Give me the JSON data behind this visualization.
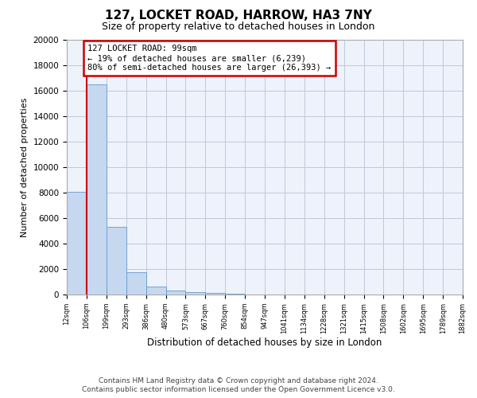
{
  "title": "127, LOCKET ROAD, HARROW, HA3 7NY",
  "subtitle": "Size of property relative to detached houses in London",
  "xlabel": "Distribution of detached houses by size in London",
  "ylabel": "Number of detached properties",
  "bar_values": [
    8050,
    16500,
    5300,
    1750,
    620,
    330,
    180,
    100,
    60,
    30,
    0,
    0,
    0,
    0,
    0,
    0,
    0,
    0,
    0,
    0
  ],
  "n_bins": 20,
  "bar_color": "#c5d8f0",
  "bar_edge_color": "#6699cc",
  "vline_bin": 1,
  "annotation_line1": "127 LOCKET ROAD: 99sqm",
  "annotation_line2": "← 19% of detached houses are smaller (6,239)",
  "annotation_line3": "80% of semi-detached houses are larger (26,393) →",
  "vline_color": "#cc0000",
  "annotation_box_edge": "#cc0000",
  "annotation_box_face": "#ffffff",
  "footer_line1": "Contains HM Land Registry data © Crown copyright and database right 2024.",
  "footer_line2": "Contains public sector information licensed under the Open Government Licence v3.0.",
  "background_color": "#edf2fb",
  "grid_color": "#c0c8d8",
  "ylim": [
    0,
    20000
  ],
  "yticks": [
    0,
    2000,
    4000,
    6000,
    8000,
    10000,
    12000,
    14000,
    16000,
    18000,
    20000
  ],
  "tick_labels": [
    "12sqm",
    "106sqm",
    "199sqm",
    "293sqm",
    "386sqm",
    "480sqm",
    "573sqm",
    "667sqm",
    "760sqm",
    "854sqm",
    "947sqm",
    "1041sqm",
    "1134sqm",
    "1228sqm",
    "1321sqm",
    "1415sqm",
    "1508sqm",
    "1602sqm",
    "1695sqm",
    "1789sqm",
    "1882sqm"
  ]
}
